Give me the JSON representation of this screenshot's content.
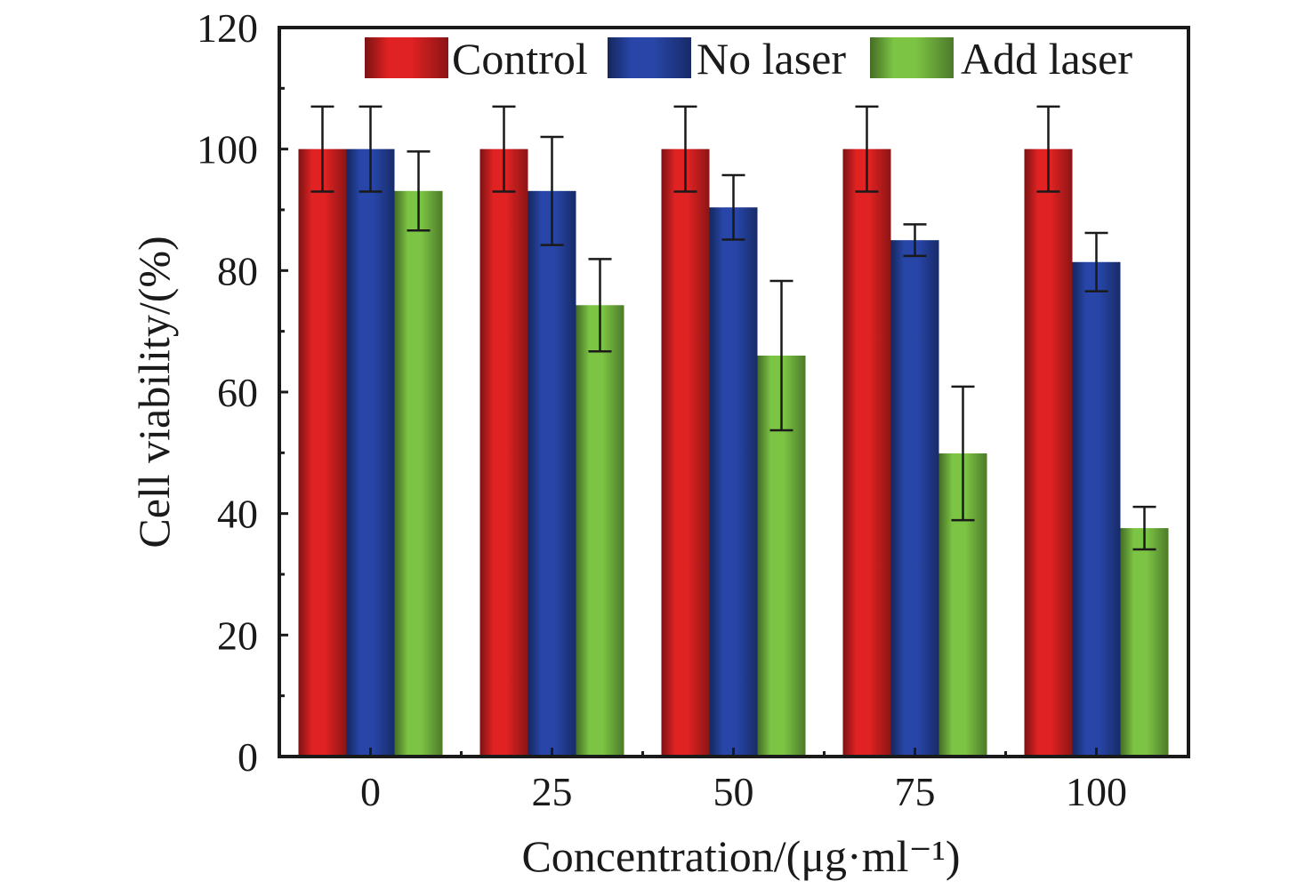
{
  "chart_data": {
    "type": "bar",
    "categories": [
      "0",
      "25",
      "50",
      "75",
      "100"
    ],
    "series": [
      {
        "name": "Control",
        "color": "#e02222",
        "values": [
          100,
          100,
          100,
          100,
          100
        ],
        "errors": [
          7,
          7,
          7,
          7,
          7
        ]
      },
      {
        "name": "No laser",
        "color": "#2746a8",
        "values": [
          100,
          93.1,
          90.4,
          85,
          81.4
        ],
        "errors": [
          7,
          8.9,
          5.3,
          2.6,
          4.8
        ]
      },
      {
        "name": "Add laser",
        "color": "#7cc444",
        "values": [
          93.1,
          74.3,
          66,
          49.9,
          37.6
        ],
        "errors": [
          6.5,
          7.6,
          12.3,
          11,
          3.5
        ]
      }
    ],
    "xlabel": "Concentration/(μg·ml⁻¹)",
    "ylabel": "Cell viability/(%)",
    "ylim": [
      0,
      120
    ],
    "yticks": [
      "0",
      "20",
      "40",
      "60",
      "80",
      "100",
      "120"
    ],
    "grid": false,
    "legend_position": "top"
  }
}
